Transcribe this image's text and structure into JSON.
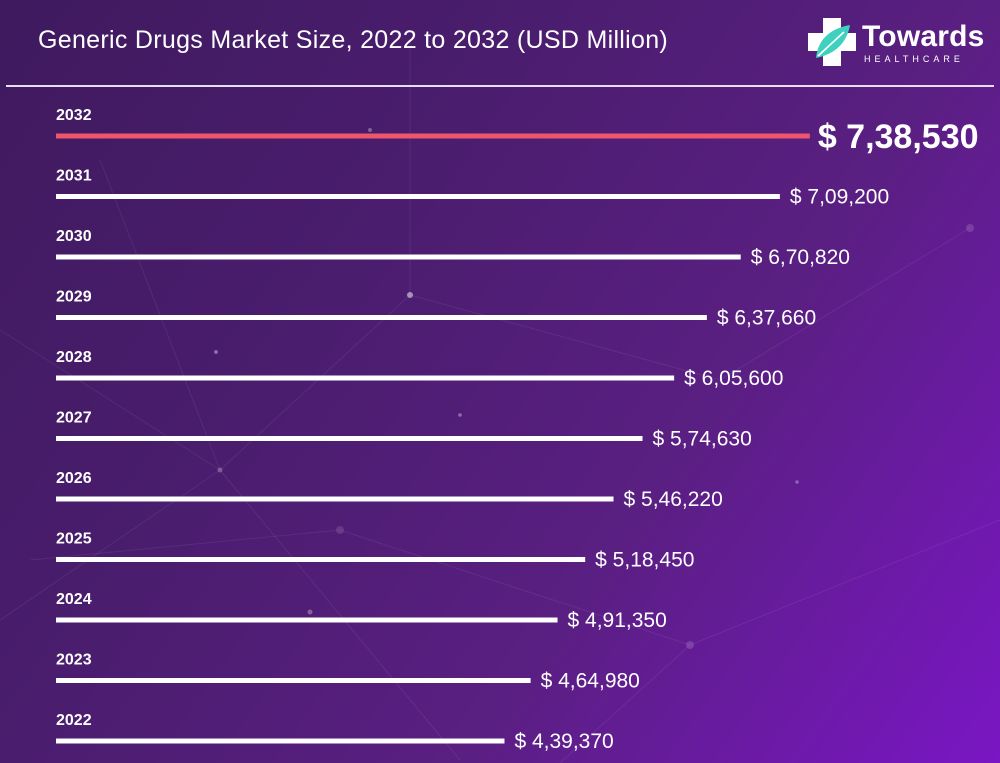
{
  "header": {
    "title": "Generic Drugs Market Size, 2022 to 2032 (USD Million)"
  },
  "logo": {
    "name": "Towards",
    "sub": "HEALTHCARE"
  },
  "colors": {
    "bar": "#ffffff",
    "highlight_bar": "#f0566b",
    "logo_accent": "#3fd0c0"
  },
  "chart_data": {
    "type": "bar",
    "orientation": "horizontal",
    "title": "Generic Drugs Market Size, 2022 to 2032 (USD Million)",
    "categories": [
      "2032",
      "2031",
      "2030",
      "2029",
      "2028",
      "2027",
      "2026",
      "2025",
      "2024",
      "2023",
      "2022"
    ],
    "values": [
      738530,
      709200,
      670820,
      637660,
      605600,
      574630,
      546220,
      518450,
      491350,
      464980,
      439370
    ],
    "value_labels": [
      "$ 7,38,530",
      "$ 7,09,200",
      "$ 6,70,820",
      "$ 6,37,660",
      "$ 6,05,600",
      "$ 5,74,630",
      "$ 5,46,220",
      "$ 5,18,450",
      "$ 4,91,350",
      "$ 4,64,980",
      "$ 4,39,370"
    ],
    "highlighted": "2032",
    "grid": false,
    "legend": "none"
  }
}
